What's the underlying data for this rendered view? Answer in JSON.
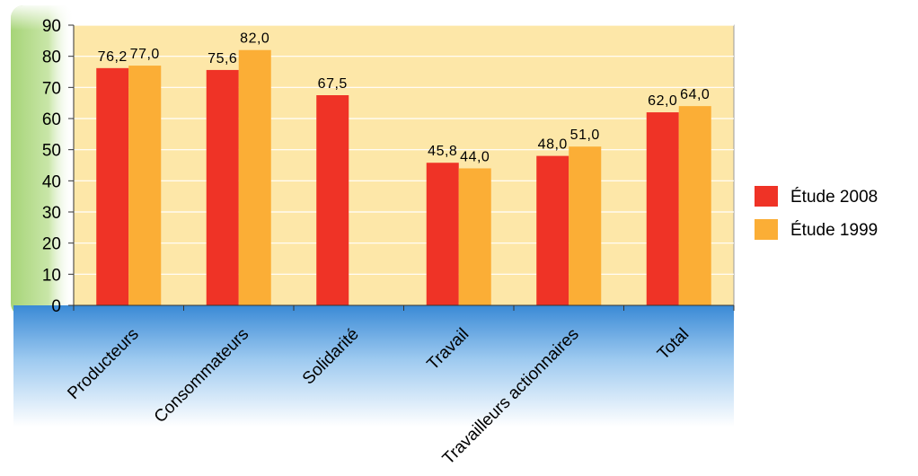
{
  "chart_data": {
    "type": "bar",
    "categories": [
      "Producteurs",
      "Consommateurs",
      "Solidarité",
      "Travail",
      "Travailleurs actionnaires",
      "Total"
    ],
    "series": [
      {
        "name": "Étude 2008",
        "values": [
          76.2,
          75.6,
          67.5,
          45.8,
          48.0,
          62.0
        ],
        "labels": [
          "76,2",
          "75,6",
          "67,5",
          "45,8",
          "48,0",
          "62,0"
        ],
        "color": "#ef3326"
      },
      {
        "name": "Étude 1999",
        "values": [
          77.0,
          82.0,
          null,
          44.0,
          51.0,
          64.0
        ],
        "labels": [
          "77,0",
          "82,0",
          "",
          "44,0",
          "51,0",
          "64,0"
        ],
        "color": "#fbae36"
      }
    ],
    "ylim": [
      0,
      90
    ],
    "yticks": [
      "0",
      "10",
      "20",
      "30",
      "40",
      "50",
      "60",
      "70",
      "80",
      "90"
    ],
    "grid": true,
    "legend_position": "right",
    "plot_background": "#fde7a8",
    "y_axis_band_color": "#8cc152",
    "x_axis_band_color": "#3d8fd8"
  }
}
